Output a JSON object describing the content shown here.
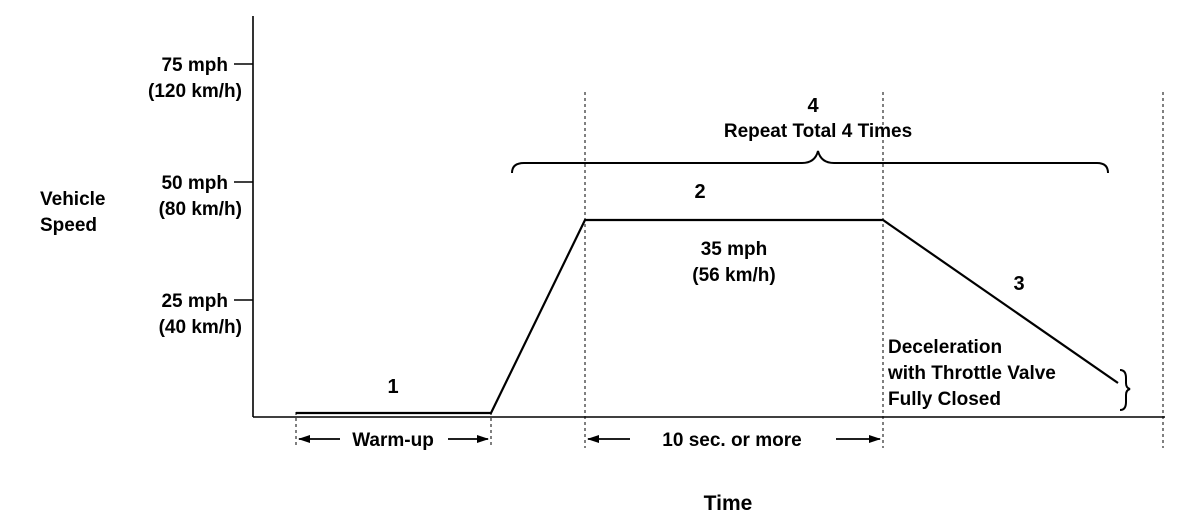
{
  "y_axis": {
    "label_line1": "Vehicle",
    "label_line2": "Speed",
    "ticks": [
      {
        "mph": "75 mph",
        "kmh": "(120 km/h)"
      },
      {
        "mph": "50 mph",
        "kmh": "(80 km/h)"
      },
      {
        "mph": "25 mph",
        "kmh": "(40 km/h)"
      }
    ]
  },
  "x_axis": {
    "label": "Time"
  },
  "steps": {
    "step1": "1",
    "step2": "2",
    "step3": "3",
    "step4": "4",
    "repeat": "Repeat Total 4 Times"
  },
  "cruise": {
    "mph": "35 mph",
    "kmh": "(56 km/h)"
  },
  "decel_note": {
    "line1": "Deceleration",
    "line2": "with Throttle Valve",
    "line3": "Fully Closed"
  },
  "intervals": {
    "warmup": "Warm-up",
    "hold": "10 sec. or more"
  }
}
